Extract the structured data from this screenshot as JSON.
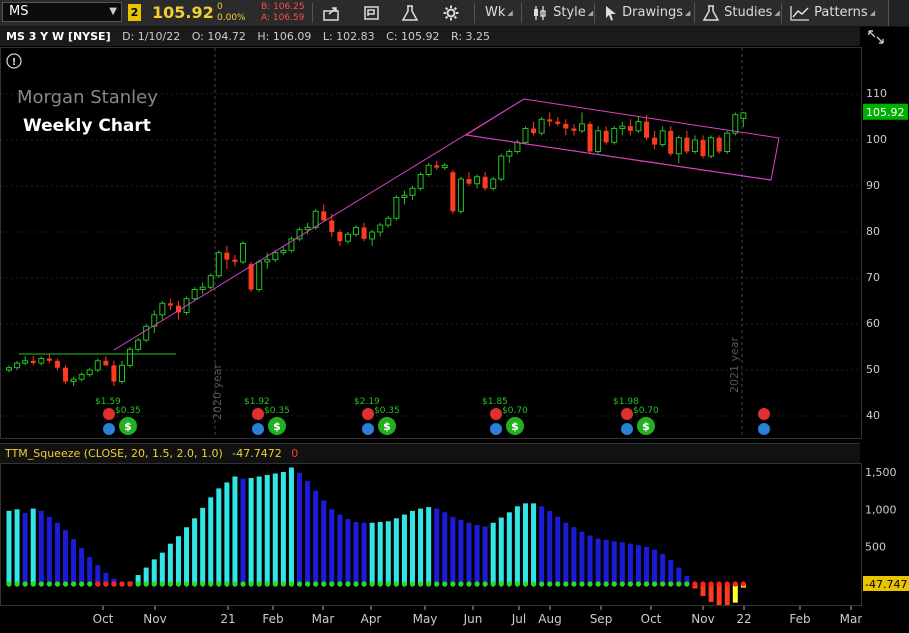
{
  "toolbar": {
    "symbol": "MS",
    "link_number": "2",
    "last": "105.92",
    "change": "0",
    "change_pct": "0.00%",
    "bid": "B: 106.25",
    "ask": "A: 106.59",
    "timeframe": "Wk",
    "style": "Style",
    "drawings": "Drawings",
    "studies": "Studies",
    "patterns": "Patterns"
  },
  "info": {
    "title": "MS 3 Y W [NYSE]",
    "date": "D: 1/10/22",
    "open": "O: 104.72",
    "high": "H: 106.09",
    "low": "L: 102.83",
    "close": "C: 105.92",
    "range": "R: 3.25"
  },
  "overlay": {
    "logo_text": "Morgan Stanley",
    "caption": "Weekly Chart",
    "year_2020": "2020 year",
    "year_2021": "2021 year"
  },
  "dividends": [
    "$1.59",
    "$0.35",
    "$1.92",
    "$0.35",
    "$2.19",
    "$0.35",
    "$1.85",
    "$0.70",
    "$1.98",
    "$0.70"
  ],
  "price_axis": {
    "ticks": [
      "110",
      "100",
      "90",
      "80",
      "70",
      "60",
      "50",
      "40"
    ],
    "last_label": "105.92"
  },
  "study": {
    "label": "TTM_Squeeze (CLOSE, 20, 1.5, 2.0, 1.0)",
    "value": "-47.7472",
    "squeeze": "0"
  },
  "lower_axis": {
    "ticks": [
      "1,500",
      "1,000",
      "500"
    ],
    "last_label": "-47.747"
  },
  "time_axis": [
    "Oct",
    "Nov",
    "21",
    "Feb",
    "Mar",
    "Apr",
    "May",
    "Jun",
    "Jul",
    "Aug",
    "Sep",
    "Oct",
    "Nov",
    "22",
    "Feb",
    "Mar"
  ],
  "colors": {
    "up": "#22c322",
    "down": "#ff3b1f",
    "cyan": "#33e6e6",
    "blue": "#1c1cd8",
    "trend": "#e040c8",
    "last_bg": "#00b000"
  },
  "chart_data": {
    "type": "candlestick",
    "ylim": [
      35,
      115
    ],
    "candles": [
      [
        50,
        51,
        49.5,
        50.5
      ],
      [
        50.5,
        52,
        50,
        51.5
      ],
      [
        51.5,
        53,
        51,
        52
      ],
      [
        52,
        53,
        51,
        51.5
      ],
      [
        51.5,
        53,
        51,
        52.5
      ],
      [
        52.5,
        53.5,
        51.5,
        52
      ],
      [
        52,
        52.5,
        50,
        50.5
      ],
      [
        50.5,
        51,
        47,
        47.5
      ],
      [
        47.5,
        48.5,
        46.5,
        48
      ],
      [
        48,
        49.5,
        47.5,
        49
      ],
      [
        49,
        50.5,
        48.5,
        50
      ],
      [
        50,
        52.5,
        49.5,
        52
      ],
      [
        52,
        53,
        51,
        51
      ],
      [
        51,
        52,
        46.5,
        47.5
      ],
      [
        47.5,
        52,
        47,
        51
      ],
      [
        51,
        55,
        50.5,
        54.5
      ],
      [
        54.5,
        57,
        54,
        56.5
      ],
      [
        56.5,
        60,
        56,
        59.5
      ],
      [
        59.5,
        63,
        58,
        62
      ],
      [
        62,
        65,
        61,
        64.5
      ],
      [
        64.5,
        65.5,
        63,
        64
      ],
      [
        64,
        65,
        61,
        62.5
      ],
      [
        62.5,
        66,
        62,
        65.5
      ],
      [
        65.5,
        68,
        65,
        67.5
      ],
      [
        67.5,
        69,
        66.5,
        68
      ],
      [
        68,
        71,
        67.5,
        70.5
      ],
      [
        70.5,
        76,
        70,
        75.5
      ],
      [
        75.5,
        77,
        72,
        74
      ],
      [
        74,
        75,
        72.5,
        73.5
      ],
      [
        73.5,
        78,
        73,
        77.5
      ],
      [
        73,
        73.5,
        67,
        67.5
      ],
      [
        67.5,
        74,
        67,
        73.5
      ],
      [
        73.5,
        75.5,
        72,
        74
      ],
      [
        74,
        76,
        73.5,
        75.5
      ],
      [
        75.5,
        77,
        75,
        76
      ],
      [
        76,
        79,
        75.5,
        78.5
      ],
      [
        78.5,
        81,
        78,
        80.5
      ],
      [
        80.5,
        82,
        79.5,
        81
      ],
      [
        81,
        85,
        80.5,
        84.5
      ],
      [
        84.5,
        86,
        83,
        82.5
      ],
      [
        82.5,
        84,
        79,
        80
      ],
      [
        80,
        80.5,
        77,
        78
      ],
      [
        78,
        80,
        77.5,
        79.5
      ],
      [
        79.5,
        81.5,
        79,
        81
      ],
      [
        81,
        82,
        78,
        78.5
      ],
      [
        78.5,
        80.5,
        77,
        80
      ],
      [
        80,
        82,
        79,
        81.5
      ],
      [
        81.5,
        83.5,
        81,
        83
      ],
      [
        83,
        88,
        82.5,
        87.5
      ],
      [
        87.5,
        89,
        86,
        88
      ],
      [
        88,
        90,
        87,
        89.5
      ],
      [
        89.5,
        93,
        89,
        92.5
      ],
      [
        92.5,
        95,
        92,
        94.5
      ],
      [
        94.5,
        95.5,
        93.5,
        94
      ],
      [
        94,
        95,
        93.5,
        94.5
      ],
      [
        93,
        93.5,
        84,
        84.5
      ],
      [
        84.5,
        92,
        84,
        91.5
      ],
      [
        91.5,
        93,
        90,
        90.5
      ],
      [
        90.5,
        92.5,
        89.5,
        92
      ],
      [
        92,
        93,
        89,
        89.5
      ],
      [
        89.5,
        92,
        89,
        91.5
      ],
      [
        91.5,
        97,
        91,
        96.5
      ],
      [
        96.5,
        98,
        95,
        97.5
      ],
      [
        97.5,
        100,
        97,
        99.5
      ],
      [
        99.5,
        103,
        99,
        102.5
      ],
      [
        102.5,
        104,
        101,
        101.5
      ],
      [
        101.5,
        105,
        101,
        104.5
      ],
      [
        104.5,
        106,
        103,
        104
      ],
      [
        104,
        105,
        103,
        103.5
      ],
      [
        103.5,
        104.5,
        101,
        102.5
      ],
      [
        102.5,
        103.5,
        101,
        102
      ],
      [
        102,
        106,
        101.5,
        103.5
      ],
      [
        103.5,
        104,
        97,
        97.5
      ],
      [
        97.5,
        103,
        97,
        102
      ],
      [
        102,
        103,
        99,
        99.5
      ],
      [
        99.5,
        103,
        99,
        102.5
      ],
      [
        102.5,
        104,
        101,
        103
      ],
      [
        103,
        104.5,
        101,
        102
      ],
      [
        102,
        105,
        101.5,
        104
      ],
      [
        104,
        105.5,
        100,
        100.5
      ],
      [
        100.5,
        102,
        98,
        99
      ],
      [
        99,
        103,
        98.5,
        102
      ],
      [
        102,
        103,
        96.5,
        97
      ],
      [
        97,
        101,
        95,
        100.5
      ],
      [
        100.5,
        102,
        97,
        97.5
      ],
      [
        97.5,
        101,
        97,
        100
      ],
      [
        100,
        101,
        96,
        96.5
      ],
      [
        96.5,
        101,
        96,
        100.5
      ],
      [
        100.5,
        101,
        97,
        97.5
      ],
      [
        97.5,
        102,
        97,
        101.5
      ],
      [
        101.5,
        106,
        101,
        105.5
      ],
      [
        104.7,
        106.1,
        102.8,
        105.9
      ]
    ],
    "squeeze_histogram": [
      980,
      1000,
      950,
      1010,
      980,
      900,
      820,
      720,
      600,
      480,
      360,
      250,
      150,
      70,
      10,
      30,
      120,
      220,
      330,
      420,
      540,
      640,
      760,
      880,
      1020,
      1160,
      1280,
      1360,
      1440,
      1410,
      1420,
      1440,
      1460,
      1480,
      1500,
      1560,
      1490,
      1380,
      1250,
      1120,
      1000,
      930,
      870,
      830,
      820,
      820,
      830,
      840,
      880,
      930,
      980,
      1010,
      1030,
      1010,
      960,
      900,
      860,
      820,
      790,
      770,
      820,
      890,
      960,
      1040,
      1080,
      1080,
      1040,
      980,
      900,
      820,
      760,
      700,
      650,
      610,
      590,
      570,
      560,
      540,
      520,
      500,
      460,
      400,
      320,
      220,
      110,
      -60,
      -160,
      -240,
      -300,
      -310,
      -250,
      -48
    ],
    "squeeze_dots_on": [
      false,
      false,
      false,
      false,
      false,
      false,
      false,
      false,
      false,
      false,
      false,
      false,
      false,
      false,
      false,
      false,
      false,
      false,
      false,
      false,
      false,
      false,
      false,
      false,
      false,
      false,
      false,
      false,
      false,
      false,
      false,
      false,
      false,
      false,
      false,
      false,
      false,
      false,
      false,
      false,
      false,
      false,
      false,
      false,
      false,
      false,
      false,
      false,
      false,
      false,
      false,
      false,
      false,
      false,
      false,
      false,
      false,
      false,
      false,
      false,
      false,
      false,
      false,
      false,
      false,
      false,
      false,
      false,
      false,
      false,
      false,
      false,
      false,
      false,
      false,
      false,
      false,
      false,
      false,
      false,
      false,
      false,
      false,
      false,
      false,
      true,
      true,
      true,
      true,
      true,
      true,
      true
    ]
  }
}
